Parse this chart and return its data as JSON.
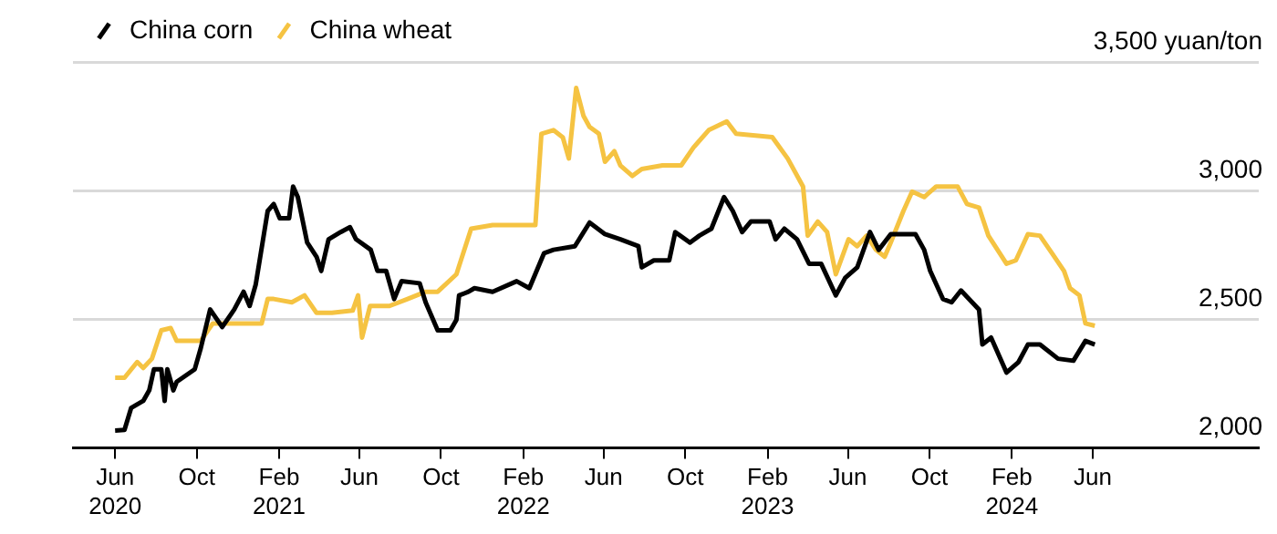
{
  "chart_data": {
    "type": "line",
    "ylabel": null,
    "legend": "top left",
    "grid": "y",
    "marker": "none",
    "line_style": "solid",
    "xlim": [
      "2020-03-30",
      "2025-02-04"
    ],
    "xticks": [
      {
        "value": "2020-06-01",
        "label": "Jun 2020"
      },
      {
        "value": "2020-10-01",
        "label": "Oct"
      },
      {
        "value": "2021-02-01",
        "label": "Feb 2021"
      },
      {
        "value": "2021-06-01",
        "label": "Jun"
      },
      {
        "value": "2021-10-01",
        "label": "Oct"
      },
      {
        "value": "2022-02-01",
        "label": "Feb 2022"
      },
      {
        "value": "2022-06-01",
        "label": "Jun"
      },
      {
        "value": "2022-10-01",
        "label": "Oct"
      },
      {
        "value": "2023-02-01",
        "label": "Feb 2023"
      },
      {
        "value": "2023-06-01",
        "label": "Jun"
      },
      {
        "value": "2023-10-01",
        "label": "Oct"
      },
      {
        "value": "2024-02-01",
        "label": "Feb 2024"
      },
      {
        "value": "2024-06-01",
        "label": "Jun"
      }
    ],
    "ylim": [
      2000,
      3500
    ],
    "yticks": [
      {
        "value": 2000,
        "label": "2,000"
      },
      {
        "value": 2500,
        "label": "2,500"
      },
      {
        "value": 3000,
        "label": "3,000"
      },
      {
        "value": 3500,
        "label": "3,500 yuan/ton"
      }
    ],
    "series": [
      {
        "name": "China corn",
        "color": "#000000",
        "x": [
          "2020-06-01",
          "2020-06-15",
          "2020-06-25",
          "2020-07-13",
          "2020-07-22",
          "2020-07-29",
          "2020-08-09",
          "2020-08-14",
          "2020-08-18",
          "2020-08-27",
          "2020-09-01",
          "2020-09-28",
          "2020-10-07",
          "2020-10-21",
          "2020-11-08",
          "2020-11-26",
          "2020-12-10",
          "2020-12-19",
          "2020-12-28",
          "2021-01-15",
          "2021-01-24",
          "2021-02-02",
          "2021-02-16",
          "2021-02-22",
          "2021-03-01",
          "2021-03-15",
          "2021-03-29",
          "2021-04-05",
          "2021-04-16",
          "2021-05-04",
          "2021-05-18",
          "2021-05-27",
          "2021-06-18",
          "2021-06-28",
          "2021-07-11",
          "2021-07-23",
          "2021-08-03",
          "2021-08-30",
          "2021-09-08",
          "2021-09-26",
          "2021-10-15",
          "2021-10-24",
          "2021-10-28",
          "2021-11-11",
          "2021-11-20",
          "2021-12-17",
          "2022-01-22",
          "2022-02-10",
          "2022-03-04",
          "2022-03-18",
          "2022-04-19",
          "2022-05-11",
          "2022-06-03",
          "2022-06-26",
          "2022-07-23",
          "2022-07-28",
          "2022-08-15",
          "2022-09-07",
          "2022-09-16",
          "2022-10-08",
          "2022-10-22",
          "2022-11-09",
          "2022-11-28",
          "2022-12-11",
          "2022-12-25",
          "2023-01-07",
          "2023-02-04",
          "2023-02-13",
          "2023-02-26",
          "2023-03-17",
          "2023-04-04",
          "2023-04-22",
          "2023-05-14",
          "2023-05-28",
          "2023-06-15",
          "2023-07-04",
          "2023-07-17",
          "2023-08-04",
          "2023-09-10",
          "2023-09-23",
          "2023-10-02",
          "2023-10-21",
          "2023-11-03",
          "2023-11-17",
          "2023-12-14",
          "2023-12-19",
          "2024-01-01",
          "2024-01-24",
          "2024-02-11",
          "2024-02-25",
          "2024-03-14",
          "2024-04-10",
          "2024-05-03",
          "2024-05-21",
          "2024-06-04"
        ],
        "values": [
          2068,
          2070,
          2156,
          2183,
          2224,
          2306,
          2306,
          2183,
          2306,
          2224,
          2257,
          2306,
          2388,
          2538,
          2470,
          2538,
          2607,
          2552,
          2634,
          2921,
          2948,
          2893,
          2893,
          3016,
          2975,
          2798,
          2743,
          2688,
          2811,
          2839,
          2858,
          2811,
          2770,
          2688,
          2688,
          2579,
          2648,
          2640,
          2566,
          2457,
          2457,
          2498,
          2593,
          2607,
          2621,
          2607,
          2648,
          2621,
          2757,
          2770,
          2784,
          2876,
          2831,
          2811,
          2784,
          2702,
          2729,
          2729,
          2839,
          2798,
          2825,
          2852,
          2975,
          2921,
          2839,
          2880,
          2880,
          2811,
          2852,
          2811,
          2716,
          2716,
          2593,
          2661,
          2702,
          2839,
          2770,
          2831,
          2831,
          2770,
          2688,
          2579,
          2566,
          2612,
          2538,
          2402,
          2429,
          2293,
          2334,
          2402,
          2402,
          2347,
          2339,
          2416,
          2402
        ]
      },
      {
        "name": "China wheat",
        "color": "#f5c342",
        "x": [
          "2020-06-01",
          "2020-06-15",
          "2020-07-04",
          "2020-07-13",
          "2020-07-26",
          "2020-08-09",
          "2020-08-23",
          "2020-09-01",
          "2020-10-07",
          "2020-10-25",
          "2021-01-06",
          "2021-01-15",
          "2021-01-24",
          "2021-02-20",
          "2021-03-11",
          "2021-03-29",
          "2021-04-21",
          "2021-05-22",
          "2021-05-30",
          "2021-06-05",
          "2021-06-17",
          "2021-07-16",
          "2021-08-12",
          "2021-09-08",
          "2021-09-26",
          "2021-10-24",
          "2021-11-15",
          "2021-12-17",
          "2022-01-13",
          "2022-02-19",
          "2022-02-28",
          "2022-03-18",
          "2022-04-01",
          "2022-04-10",
          "2022-04-21",
          "2022-05-02",
          "2022-05-11",
          "2022-05-25",
          "2022-06-03",
          "2022-06-17",
          "2022-06-26",
          "2022-07-14",
          "2022-07-28",
          "2022-08-28",
          "2022-09-25",
          "2022-10-13",
          "2022-11-05",
          "2022-12-02",
          "2022-12-16",
          "2023-02-08",
          "2023-03-03",
          "2023-03-26",
          "2023-04-02",
          "2023-04-17",
          "2023-05-01",
          "2023-05-14",
          "2023-06-02",
          "2023-06-15",
          "2023-06-29",
          "2023-07-13",
          "2023-07-26",
          "2023-08-04",
          "2023-08-23",
          "2023-09-05",
          "2023-09-23",
          "2023-10-11",
          "2023-11-12",
          "2023-11-26",
          "2023-12-14",
          "2023-12-28",
          "2024-01-24",
          "2024-02-07",
          "2024-02-25",
          "2024-03-14",
          "2024-04-01",
          "2024-04-19",
          "2024-04-28",
          "2024-05-12",
          "2024-05-21",
          "2024-06-04"
        ],
        "values": [
          2273,
          2273,
          2334,
          2311,
          2347,
          2457,
          2466,
          2416,
          2416,
          2484,
          2484,
          2579,
          2579,
          2566,
          2593,
          2525,
          2525,
          2534,
          2593,
          2429,
          2552,
          2552,
          2579,
          2607,
          2607,
          2675,
          2852,
          2866,
          2866,
          2866,
          3221,
          3235,
          3207,
          3125,
          3399,
          3290,
          3248,
          3221,
          3112,
          3153,
          3098,
          3057,
          3084,
          3098,
          3098,
          3167,
          3235,
          3269,
          3221,
          3208,
          3125,
          3016,
          2825,
          2880,
          2839,
          2675,
          2811,
          2784,
          2825,
          2770,
          2743,
          2798,
          2921,
          2996,
          2975,
          3016,
          3016,
          2948,
          2934,
          2825,
          2716,
          2729,
          2831,
          2825,
          2757,
          2688,
          2621,
          2593,
          2484,
          2475
        ]
      }
    ]
  }
}
